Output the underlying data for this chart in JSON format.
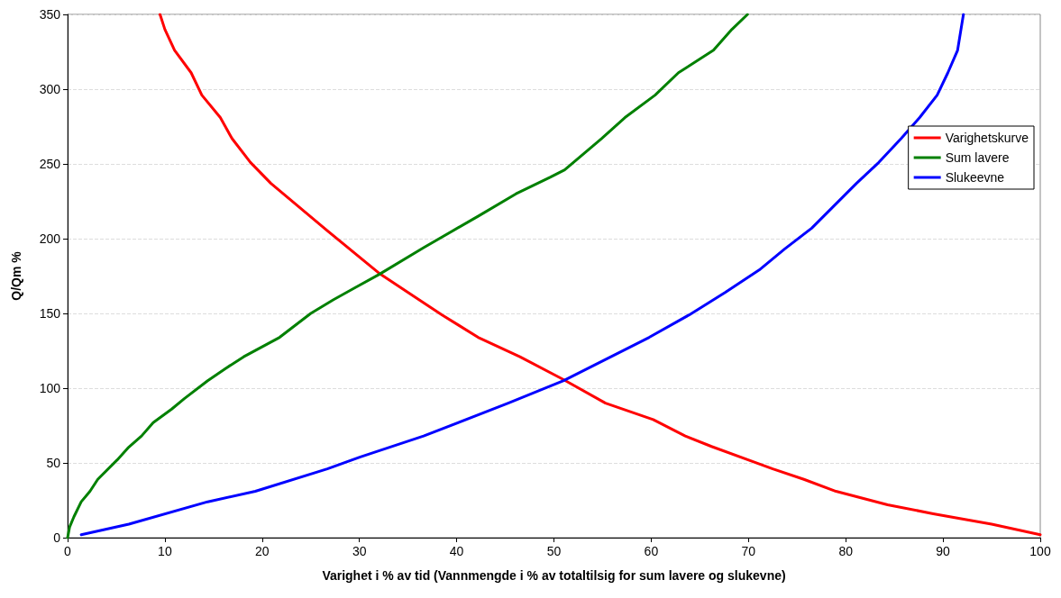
{
  "chart_data": {
    "type": "line",
    "xlabel": "Varighet i % av tid (Vannmengde i % av totaltilsig for sum lavere og slukevne)",
    "ylabel": "Q/Qm %",
    "xlim": [
      0,
      100
    ],
    "xticks": [
      0,
      10,
      20,
      30,
      40,
      50,
      60,
      70,
      80,
      90,
      100
    ],
    "ylim": [
      0,
      350
    ],
    "yticks": [
      0,
      50,
      100,
      150,
      200,
      250,
      300,
      350
    ],
    "grid": "y",
    "legend": "right",
    "marker": "none",
    "line_style": "solid",
    "series": [
      {
        "name": "Varighetskurve",
        "color": "#ff0000",
        "x": [
          9.5,
          10.0,
          11.0,
          12.7,
          13.8,
          15.7,
          16.9,
          18.8,
          20.9,
          26.2,
          32.0,
          35.7,
          38.5,
          42.2,
          46.5,
          50.9,
          55.3,
          60.2,
          63.5,
          66.2,
          72.5,
          75.7,
          79.0,
          84.3,
          89.0,
          95.0,
          100
        ],
        "values": [
          350,
          340,
          326,
          311,
          296,
          281,
          267,
          251,
          237,
          208,
          177,
          161,
          149,
          134,
          121,
          106,
          90,
          79,
          68,
          61,
          46,
          39,
          31,
          22,
          16,
          9,
          2
        ]
      },
      {
        "name": "Sum lavere",
        "color": "#008000",
        "x": [
          0,
          0.2,
          0.65,
          1.4,
          2.3,
          3.1,
          5.1,
          6.2,
          7.6,
          8.8,
          10.7,
          12.0,
          14.4,
          16.2,
          18.1,
          21.8,
          25.0,
          27.3,
          29.5,
          32.0,
          36.6,
          42.2,
          46.1,
          49.6,
          51.1,
          54.9,
          57.3,
          60.4,
          62.8,
          66.4,
          68.3,
          69.9
        ],
        "values": [
          0,
          7,
          14,
          24,
          31,
          39,
          52,
          60,
          68,
          77,
          86,
          93,
          105,
          113,
          121,
          134,
          150,
          159,
          167,
          176,
          194,
          215,
          230,
          241,
          246,
          267,
          281,
          296,
          311,
          326,
          340,
          350
        ]
      },
      {
        "name": "Slukeevne",
        "color": "#0000ff",
        "x": [
          1.4,
          6.3,
          14.4,
          19.3,
          26.7,
          30.1,
          36.6,
          45.3,
          51.0,
          59.8,
          63.9,
          67.6,
          71.1,
          73.7,
          76.5,
          81.1,
          83.4,
          85.7,
          87.6,
          89.4,
          90.5,
          91.5,
          92.1
        ],
        "values": [
          2,
          9,
          24,
          31,
          46,
          54,
          68,
          90,
          105,
          134,
          149,
          164,
          179,
          193,
          207,
          237,
          251,
          267,
          281,
          296,
          311,
          326,
          350
        ]
      }
    ]
  }
}
